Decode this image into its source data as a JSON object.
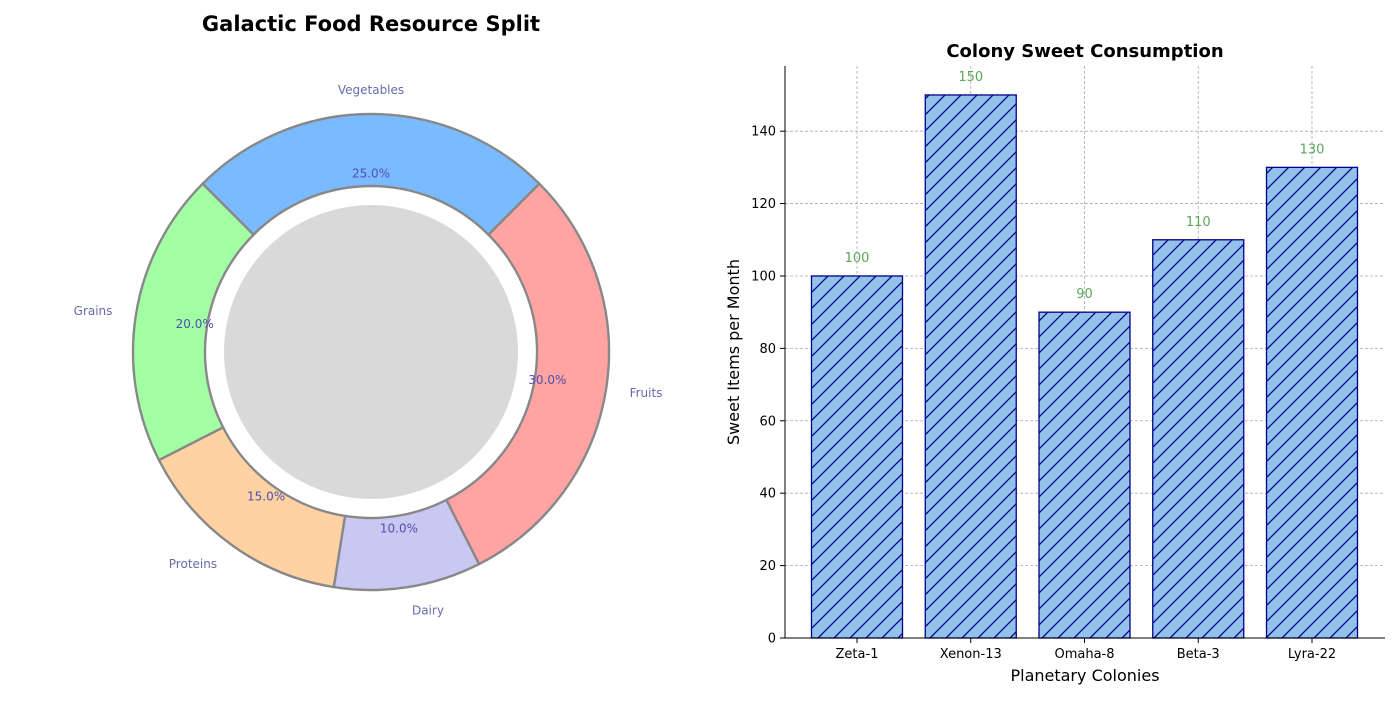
{
  "chart_data": [
    {
      "type": "pie",
      "title": "Galactic Food Resource Split",
      "categories": [
        "Fruits",
        "Dairy",
        "Proteins",
        "Grains",
        "Vegetables"
      ],
      "values": [
        30.0,
        10.0,
        15.0,
        20.0,
        25.0
      ],
      "pct_labels": [
        "30.0%",
        "10.0%",
        "15.0%",
        "20.0%",
        "25.0%"
      ],
      "colors": [
        "#ffa3a3",
        "#c8c8f2",
        "#ffd2a3",
        "#a3ffa3",
        "#7abaff"
      ],
      "center_color": "#d9d9d9",
      "label_color": "#6a6aaa"
    },
    {
      "type": "bar",
      "title": "Colony Sweet Consumption",
      "categories": [
        "Zeta-1",
        "Xenon-13",
        "Omaha-8",
        "Beta-3",
        "Lyra-22"
      ],
      "values": [
        100,
        150,
        90,
        110,
        130
      ],
      "value_labels": [
        "100",
        "150",
        "90",
        "110",
        "130"
      ],
      "xlabel": "Planetary Colonies",
      "ylabel": "Sweet Items per Month",
      "ylim": [
        0,
        158
      ],
      "yticks": [
        "0",
        "20",
        "40",
        "60",
        "80",
        "100",
        "120",
        "140"
      ],
      "grid": true,
      "bar_color": "#92c1e9",
      "edge_color": "#00008b",
      "value_label_color": "#5aa55a"
    }
  ]
}
